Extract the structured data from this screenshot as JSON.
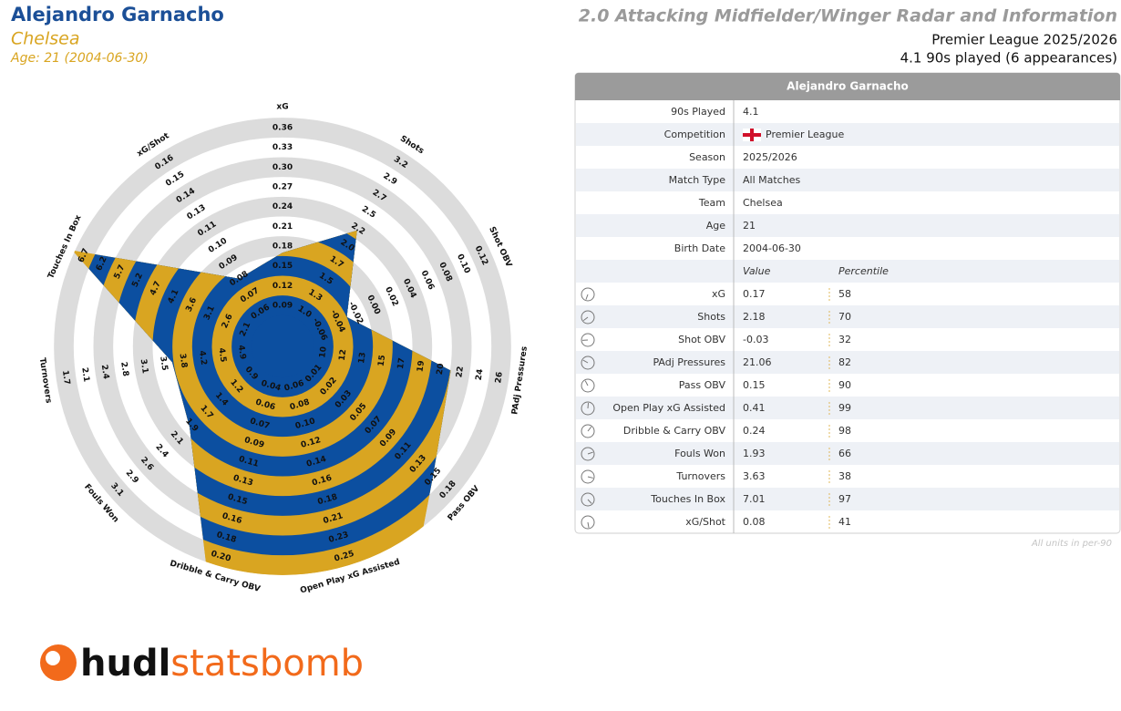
{
  "header": {
    "name": "Alejandro Garnacho",
    "team": "Chelsea",
    "age": "Age: 21 (2004-06-30)",
    "title": "2.0 Attacking Midfielder/Winger Radar and Information",
    "competition": "Premier League 2025/2026",
    "minutes": "4.1 90s played (6 appearances)"
  },
  "chart_data": {
    "type": "radar",
    "categories": [
      "xG",
      "Shots",
      "Shot OBV",
      "PAdj Pressures",
      "Pass OBV",
      "Open Play xG Assisted",
      "Dribble & Carry OBV",
      "Fouls Won",
      "Turnovers",
      "Touches In Box",
      "xG/Shot"
    ],
    "values": [
      0.17,
      2.18,
      -0.03,
      21.06,
      0.15,
      0.41,
      0.24,
      1.93,
      3.63,
      7.01,
      0.08
    ],
    "axis_ticks": [
      [
        0.09,
        0.12,
        0.15,
        0.18,
        0.21,
        0.24,
        0.27,
        {
          "value": 0.3,
          "label": "0.30"
        },
        0.33,
        0.36
      ],
      [
        {
          "value": 1,
          "label": "1.0"
        },
        1.3,
        1.5,
        1.7,
        {
          "value": 2,
          "label": "2.0"
        },
        2.2,
        2.5,
        2.7,
        2.9,
        3.2
      ],
      [
        -0.06,
        -0.04,
        -0.02,
        {
          "value": 0,
          "label": "0.00"
        },
        0.02,
        0.04,
        0.06,
        0.08,
        {
          "value": 0.1,
          "label": "0.10"
        },
        0.12
      ],
      [
        10,
        12,
        13,
        15,
        17,
        19,
        20,
        22,
        24,
        26
      ],
      [
        0.01,
        0.02,
        0.03,
        0.05,
        0.07,
        0.09,
        0.11,
        0.13,
        0.15,
        0.18
      ],
      [
        0.06,
        0.08,
        {
          "value": 0.1,
          "label": "0.10"
        },
        0.12,
        0.14,
        0.16,
        0.18,
        0.21,
        0.23,
        0.25
      ],
      [
        0.04,
        0.06,
        0.07,
        0.09,
        0.11,
        0.13,
        0.15,
        0.16,
        0.18,
        {
          "value": 0.2,
          "label": "0.20"
        }
      ],
      [
        0.9,
        1.2,
        1.4,
        1.7,
        1.9,
        2.1,
        2.4,
        2.6,
        2.9,
        3.1
      ],
      [
        4.9,
        4.5,
        4.2,
        3.8,
        3.5,
        3.1,
        2.8,
        2.4,
        2.1,
        1.7
      ],
      [
        2.1,
        2.6,
        3.1,
        3.6,
        4.1,
        4.7,
        5.2,
        5.7,
        6.2,
        6.7
      ],
      [
        0.06,
        0.07,
        0.08,
        0.09,
        {
          "value": 0.1,
          "label": "0.10"
        },
        0.11,
        0.13,
        0.14,
        0.15,
        0.16
      ]
    ],
    "fill_colors": [
      "#d9a521",
      "#0c4fa0"
    ],
    "ring_colors": [
      "#ffffff",
      "#dcdcdc"
    ]
  },
  "table": {
    "title": "Alejandro Garnacho",
    "info": [
      [
        "90s Played",
        "4.1"
      ],
      [
        "Competition",
        "Premier League"
      ],
      [
        "Season",
        "2025/2026"
      ],
      [
        "Match Type",
        "All Matches"
      ],
      [
        "Team",
        "Chelsea"
      ],
      [
        "Age",
        "21"
      ],
      [
        "Birth Date",
        "2004-06-30"
      ]
    ],
    "columns": [
      "Value",
      "Percentile"
    ],
    "stats": [
      [
        "xG",
        "0.17",
        58
      ],
      [
        "Shots",
        "2.18",
        70
      ],
      [
        "Shot OBV",
        "-0.03",
        32
      ],
      [
        "PAdj Pressures",
        "21.06",
        82
      ],
      [
        "Pass OBV",
        "0.15",
        90
      ],
      [
        "Open Play xG Assisted",
        "0.41",
        99
      ],
      [
        "Dribble & Carry OBV",
        "0.24",
        98
      ],
      [
        "Fouls Won",
        "1.93",
        66
      ],
      [
        "Turnovers",
        "3.63",
        38
      ],
      [
        "Touches In Box",
        "7.01",
        97
      ],
      [
        "xG/Shot",
        "0.08",
        41
      ]
    ],
    "percentile_colors": [
      "#d98f1c",
      "#c8661c",
      "#3c7fab",
      "#9c2a18",
      "#8a1c16",
      "#6e1210",
      "#741411",
      "#cf7a1c",
      "#3f88ad",
      "#7a1612",
      "#3f9bbd"
    ],
    "note": "All units in per-90"
  },
  "logo": {
    "brand": "hudl",
    "product": "statsbomb"
  }
}
